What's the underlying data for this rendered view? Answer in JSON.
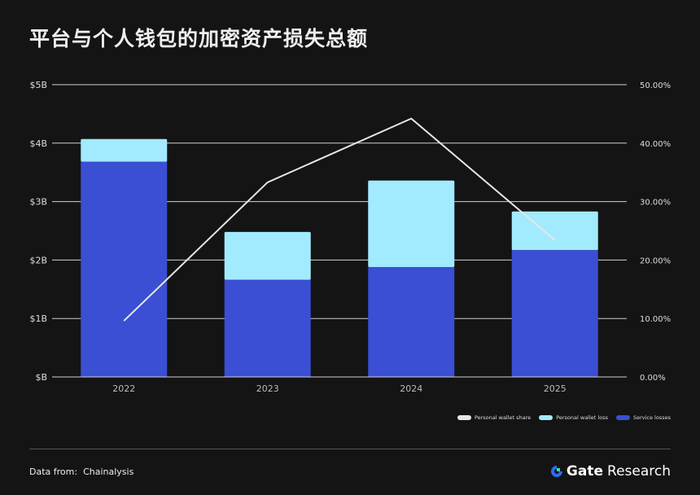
{
  "title": "平台与个人钱包的加密资产损失总额",
  "source_label": "Data from:",
  "source_value": "Chainalysis",
  "logo": {
    "brand": "Gate",
    "suffix": "Research"
  },
  "colors": {
    "service": "#3a4fd4",
    "personal": "#a2eafe",
    "line": "#e6e6e6",
    "grid": "#cfcfcf"
  },
  "chart_data": {
    "type": "bar",
    "stacked": true,
    "categories": [
      "2022",
      "2023",
      "2024",
      "2025"
    ],
    "series": [
      {
        "name": "Service losses",
        "values": [
          3.68,
          1.66,
          1.88,
          2.17
        ],
        "axis": "left"
      },
      {
        "name": "Personal wallet loss",
        "values": [
          0.39,
          0.82,
          1.48,
          0.66
        ],
        "axis": "left"
      },
      {
        "name": "Personal wallet share",
        "type": "line",
        "values": [
          9.6,
          33.3,
          44.2,
          23.4
        ],
        "axis": "right"
      }
    ],
    "ylim": [
      0,
      5
    ],
    "y_ticks": [
      "$B",
      "$1B",
      "$2B",
      "$3B",
      "$4B",
      "$5B"
    ],
    "y2lim": [
      0,
      50
    ],
    "y2_ticks": [
      "0.00%",
      "10.00%",
      "20.00%",
      "30.00%",
      "40.00%",
      "50.00%"
    ],
    "grid": true,
    "legend_placement": "bottom-right",
    "legend": [
      "Personal wallet share",
      "Personal wallet loss",
      "Service losses"
    ]
  }
}
